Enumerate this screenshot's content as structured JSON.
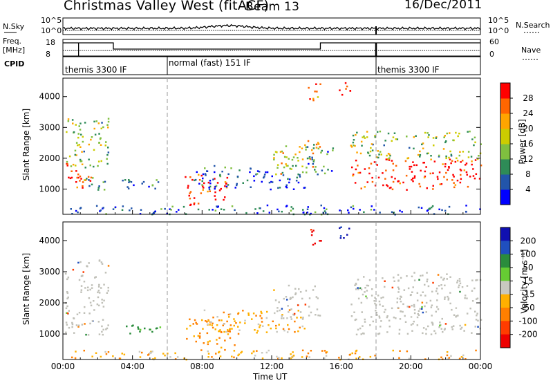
{
  "header": {
    "radar_title": "Christmas Valley West (fitACF)",
    "beam": "Beam 13",
    "date": "16/Dec/2011"
  },
  "top_panels": {
    "nsky_label": "N.Sky",
    "nsky_ticks": [
      "10^5",
      "10^0"
    ],
    "nsearch_label": "N.Search",
    "nsearch_ticks": [
      "10^5",
      "10^0"
    ],
    "freq_label": "Freq.",
    "freq_unit": "[MHz]",
    "freq_ticks": [
      "18",
      "8"
    ],
    "nave_label": "Nave",
    "nave_ticks": [
      "60",
      "0"
    ],
    "cpid_label": "CPID",
    "cpid_segments": [
      "themis 3300 IF",
      "normal (fast) 151 IF",
      "themis 3300 IF"
    ]
  },
  "colors": {
    "power_scale": [
      "#0000ff",
      "#2255aa",
      "#2e8b57",
      "#7fbf3f",
      "#cccc00",
      "#ffa500",
      "#ff6600",
      "#ff0000"
    ],
    "velocity_scale": [
      "#1010b0",
      "#1f4fbf",
      "#2a8c3c",
      "#66cc33",
      "#c8c8c0",
      "#ffb000",
      "#ff7f00",
      "#ff3c00",
      "#ee0000"
    ],
    "ground_scatter": "#c0c0b8"
  },
  "chart_data": [
    {
      "type": "heatmap",
      "title": "Power",
      "xlabel": "",
      "ylabel": "Slant Range [km]",
      "x_ticks": [
        "00:00",
        "04:00",
        "08:00",
        "12:00",
        "16:00",
        "20:00",
        "00:00"
      ],
      "y_ticks": [
        "1000",
        "2000",
        "3000",
        "4000"
      ],
      "xlim_hours": [
        0,
        24
      ],
      "ylim_km": [
        180,
        4600
      ],
      "colorbar_label": "Power [dB]",
      "colorbar_ticks": [
        "28",
        "24",
        "20",
        "16",
        "12",
        "8",
        "4"
      ],
      "colorbar_range": [
        0,
        30
      ],
      "regions": [
        {
          "t0": 0.1,
          "t1": 1.6,
          "r0": 1000,
          "r1": 1900,
          "v": 28
        },
        {
          "t0": 0.1,
          "t1": 2.6,
          "r0": 1700,
          "r1": 3400,
          "v": 14
        },
        {
          "t0": 1.0,
          "t1": 2.4,
          "r0": 1000,
          "r1": 1500,
          "v": 9
        },
        {
          "t0": 3.3,
          "t1": 5.8,
          "r0": 1000,
          "r1": 1400,
          "v": 8
        },
        {
          "t0": 7.0,
          "t1": 9.5,
          "r0": 500,
          "r1": 1500,
          "v": 28
        },
        {
          "t0": 7.5,
          "t1": 14.0,
          "r0": 1000,
          "r1": 1800,
          "v": 6
        },
        {
          "t0": 12.0,
          "t1": 14.8,
          "r0": 1500,
          "r1": 2600,
          "v": 18
        },
        {
          "t0": 14.0,
          "t1": 15.5,
          "r0": 1500,
          "r1": 2400,
          "v": 8
        },
        {
          "t0": 14.0,
          "t1": 14.8,
          "r0": 3800,
          "r1": 4500,
          "v": 22
        },
        {
          "t0": 15.8,
          "t1": 16.5,
          "r0": 3900,
          "r1": 4500,
          "v": 26
        },
        {
          "t0": 16.5,
          "t1": 24.0,
          "r0": 1000,
          "r1": 2000,
          "v": 28
        },
        {
          "t0": 16.5,
          "t1": 24.0,
          "r0": 2000,
          "r1": 2900,
          "v": 14
        },
        {
          "t0": 0.0,
          "t1": 24.0,
          "r0": 200,
          "r1": 500,
          "v": 6
        }
      ]
    },
    {
      "type": "heatmap",
      "title": "Velocity",
      "xlabel": "Time UT",
      "ylabel": "Slant Range [km]",
      "x_ticks": [
        "00:00",
        "04:00",
        "08:00",
        "12:00",
        "16:00",
        "20:00",
        "00:00"
      ],
      "y_ticks": [
        "1000",
        "2000",
        "3000",
        "4000"
      ],
      "xlim_hours": [
        0,
        24
      ],
      "ylim_km": [
        180,
        4600
      ],
      "colorbar_label": "Velocity [m s⁻¹]",
      "colorbar_ticks": [
        "200",
        "100",
        "50",
        "15",
        "-15",
        "-50",
        "-100",
        "-200"
      ],
      "colorbar_range": [
        -250,
        250
      ],
      "regions": [
        {
          "t0": 0.1,
          "t1": 2.6,
          "r0": 1000,
          "r1": 3400,
          "v": 0,
          "gs": true
        },
        {
          "t0": 3.3,
          "t1": 5.6,
          "r0": 1000,
          "r1": 1400,
          "v": 60
        },
        {
          "t0": 7.0,
          "t1": 10.0,
          "r0": 500,
          "r1": 1500,
          "v": -60
        },
        {
          "t0": 8.0,
          "t1": 14.0,
          "r0": 1000,
          "r1": 1800,
          "v": -40
        },
        {
          "t0": 12.0,
          "t1": 14.8,
          "r0": 1500,
          "r1": 2600,
          "v": 0,
          "gs": true
        },
        {
          "t0": 14.0,
          "t1": 14.8,
          "r0": 3800,
          "r1": 4400,
          "v": -220
        },
        {
          "t0": 15.8,
          "t1": 16.5,
          "r0": 3900,
          "r1": 4500,
          "v": 200
        },
        {
          "t0": 16.5,
          "t1": 24.0,
          "r0": 1000,
          "r1": 3000,
          "v": 0,
          "gs": true
        },
        {
          "t0": 0.0,
          "t1": 24.0,
          "r0": 200,
          "r1": 500,
          "v": -40
        }
      ]
    }
  ]
}
